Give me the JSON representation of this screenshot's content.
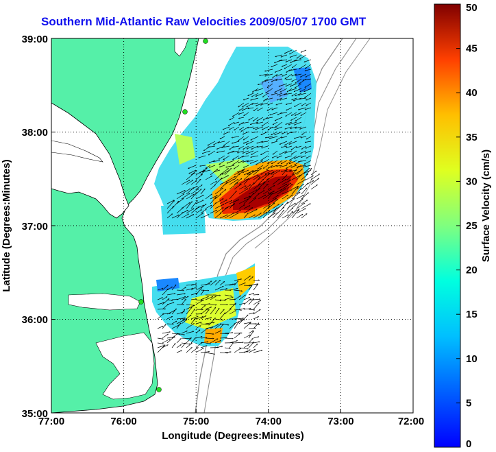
{
  "title": "Southern Mid-Atlantic Raw Velocities 2009/05/07 1700 GMT",
  "map": {
    "xlabel": "Longitude (Degrees:Minutes)",
    "ylabel": "Latitude (Degrees:Minutes)",
    "x_ticks": [
      "77:00",
      "76:00",
      "75:00",
      "74:00",
      "73:00",
      "72:00"
    ],
    "y_ticks": [
      "39:00",
      "38:00",
      "37:00",
      "36:00",
      "35:00"
    ],
    "lon_range": [
      -77,
      -72
    ],
    "lat_range": [
      35,
      39
    ],
    "grid": true,
    "land_color": "#55f0a8",
    "bathymetry_color": "#909090"
  },
  "colorbar": {
    "label": "Surface Velocity (cm/s)",
    "ticks": [
      "0",
      "5",
      "10",
      "15",
      "20",
      "25",
      "30",
      "35",
      "40",
      "45",
      "50"
    ],
    "range": [
      0,
      50
    ],
    "colormap": "jet"
  }
}
